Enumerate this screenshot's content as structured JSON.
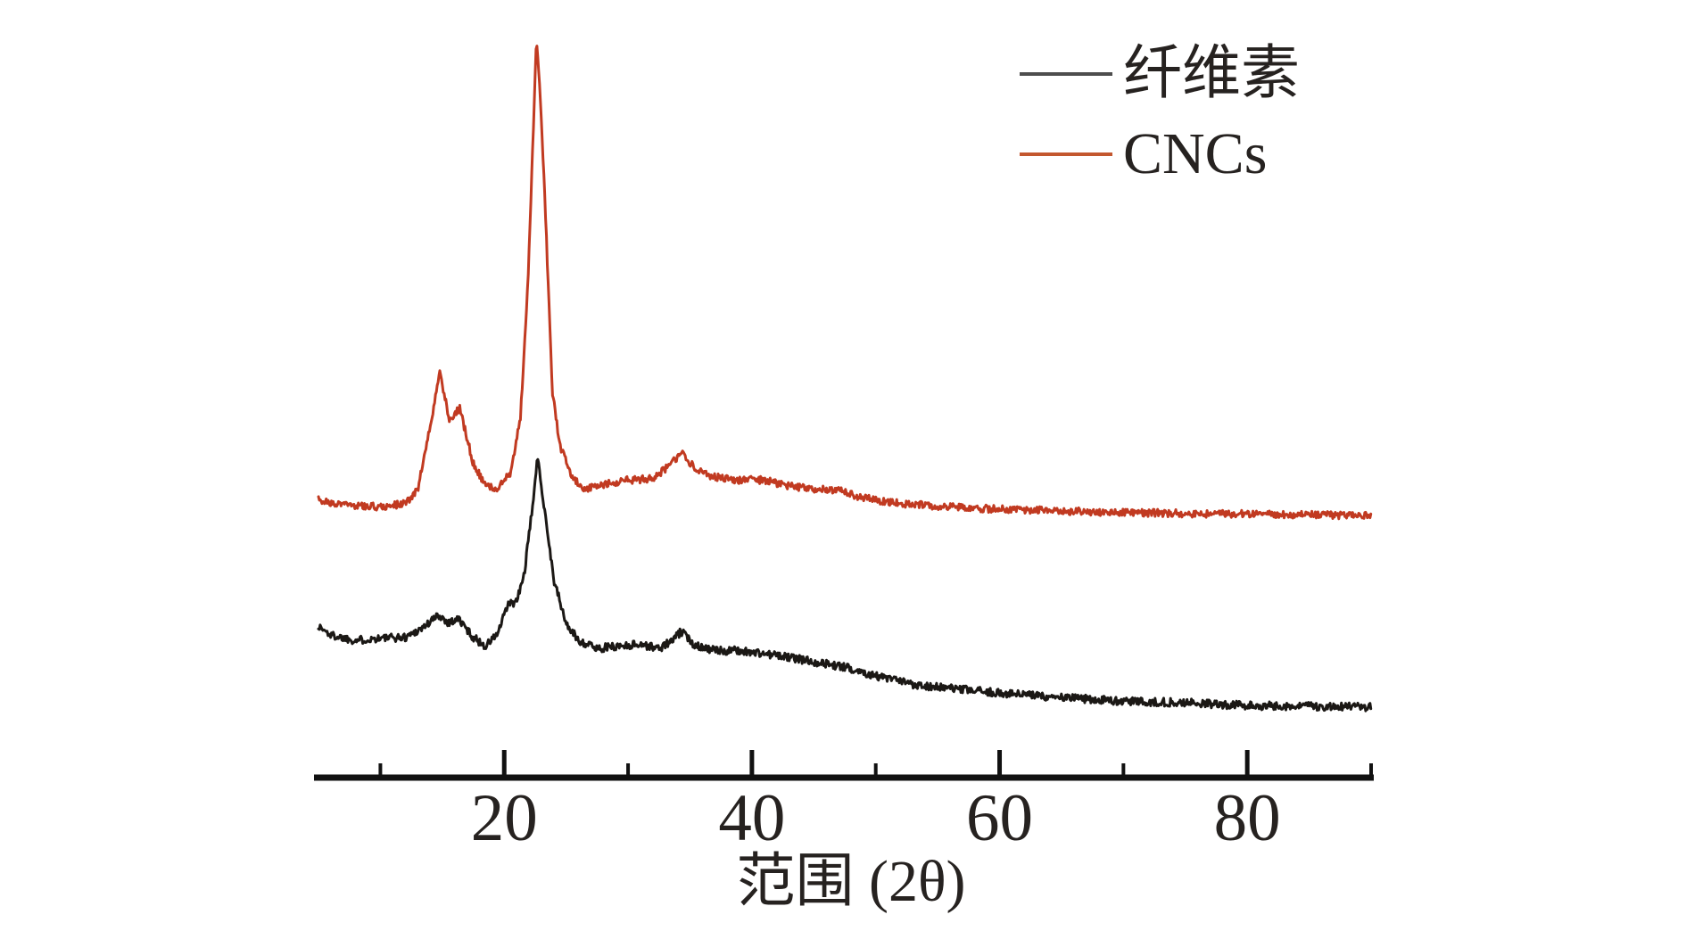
{
  "figure": {
    "kind": "XRD diffractogram comparison",
    "background_color": "#ffffff",
    "text_color": "#262220"
  },
  "legend": {
    "position": "top-right",
    "items": [
      {
        "label": "纤维素",
        "line_color": "#4d4d4d",
        "series": "cellulose"
      },
      {
        "label": "CNCs",
        "line_color": "#c3572f",
        "series": "cncs"
      }
    ]
  },
  "x_axis": {
    "label": "范围 (2θ)",
    "major_ticks": [
      20,
      40,
      60,
      80
    ],
    "minor_ticks": [
      10,
      30,
      50,
      70,
      90
    ],
    "range": [
      5,
      90
    ],
    "color": "#111111"
  },
  "chart_data": {
    "type": "line",
    "title": "",
    "xlabel": "范围 (2θ)",
    "ylabel": "",
    "y_units": "intensity, arbitrary units (axis unlabeled)",
    "xlim": [
      5,
      90
    ],
    "ylim": [
      0,
      105
    ],
    "grid": false,
    "legend_position": "top-right",
    "x_major_ticks": [
      20,
      40,
      60,
      80
    ],
    "x_minor_ticks": [
      10,
      30,
      50,
      70,
      90
    ],
    "series": [
      {
        "name": "纤维素",
        "color": "#1b1815",
        "line_style": "solid",
        "noise_amplitude": 0.55,
        "noise_seed": 1337,
        "peaks_2theta": [
          15.0,
          16.3,
          22.7,
          34.3
        ],
        "points": [
          [
            5,
            20.4
          ],
          [
            6,
            19.2
          ],
          [
            8,
            18.5
          ],
          [
            10,
            18.8
          ],
          [
            12,
            18.9
          ],
          [
            13.5,
            20.3
          ],
          [
            14.7,
            21.9
          ],
          [
            15.5,
            20.9
          ],
          [
            16.3,
            21.4
          ],
          [
            17.5,
            18.9
          ],
          [
            18.5,
            17.7
          ],
          [
            19.5,
            19.5
          ],
          [
            20.3,
            23.3
          ],
          [
            21,
            23.7
          ],
          [
            21.6,
            27.3
          ],
          [
            22.1,
            33.9
          ],
          [
            22.7,
            43.1
          ],
          [
            23.3,
            35.7
          ],
          [
            24,
            26.7
          ],
          [
            25,
            20.7
          ],
          [
            26,
            18.5
          ],
          [
            27.5,
            17.4
          ],
          [
            29,
            17.7
          ],
          [
            31,
            18.0
          ],
          [
            32.5,
            17.4
          ],
          [
            33.6,
            18.5
          ],
          [
            34.3,
            19.7
          ],
          [
            35.3,
            18.0
          ],
          [
            37,
            17.1
          ],
          [
            39,
            17.1
          ],
          [
            41,
            16.7
          ],
          [
            43,
            16.2
          ],
          [
            45.5,
            15.5
          ],
          [
            48,
            14.7
          ],
          [
            50.5,
            13.5
          ],
          [
            53,
            12.6
          ],
          [
            56,
            12.0
          ],
          [
            60,
            11.4
          ],
          [
            65,
            10.8
          ],
          [
            70,
            10.3
          ],
          [
            75,
            10.1
          ],
          [
            80,
            9.7
          ],
          [
            85,
            9.6
          ],
          [
            90,
            9.5
          ]
        ]
      },
      {
        "name": "CNCs",
        "color": "#c13a21",
        "line_style": "solid",
        "noise_amplitude": 0.5,
        "noise_seed": 9001,
        "peaks_2theta": [
          14.8,
          16.4,
          22.6,
          34.3
        ],
        "points": [
          [
            5,
            37.5
          ],
          [
            6,
            37.0
          ],
          [
            8,
            36.7
          ],
          [
            10,
            36.5
          ],
          [
            12,
            36.9
          ],
          [
            13,
            38.7
          ],
          [
            14,
            47.1
          ],
          [
            14.8,
            54.6
          ],
          [
            15.6,
            48.1
          ],
          [
            16.4,
            49.8
          ],
          [
            17.5,
            42.3
          ],
          [
            18.5,
            39.3
          ],
          [
            19.5,
            38.9
          ],
          [
            20.5,
            41.1
          ],
          [
            21.3,
            48.3
          ],
          [
            21.9,
            66.3
          ],
          [
            22.3,
            85
          ],
          [
            22.6,
            100
          ],
          [
            22.9,
            92
          ],
          [
            23.3,
            77.2
          ],
          [
            23.9,
            51.9
          ],
          [
            24.5,
            44.7
          ],
          [
            25.5,
            40.5
          ],
          [
            26.5,
            38.9
          ],
          [
            28,
            39.5
          ],
          [
            30,
            40.1
          ],
          [
            32,
            40.3
          ],
          [
            33.5,
            42.3
          ],
          [
            34.3,
            43.8
          ],
          [
            35.5,
            41.5
          ],
          [
            37,
            40.5
          ],
          [
            39,
            40.1
          ],
          [
            41,
            40.1
          ],
          [
            43,
            39.3
          ],
          [
            45,
            38.9
          ],
          [
            47,
            38.7
          ],
          [
            49,
            37.7
          ],
          [
            51,
            37.1
          ],
          [
            54,
            36.7
          ],
          [
            58,
            36.3
          ],
          [
            62,
            36.1
          ],
          [
            68,
            35.8
          ],
          [
            75,
            35.6
          ],
          [
            82,
            35.5
          ],
          [
            90,
            35.3
          ]
        ]
      }
    ]
  }
}
